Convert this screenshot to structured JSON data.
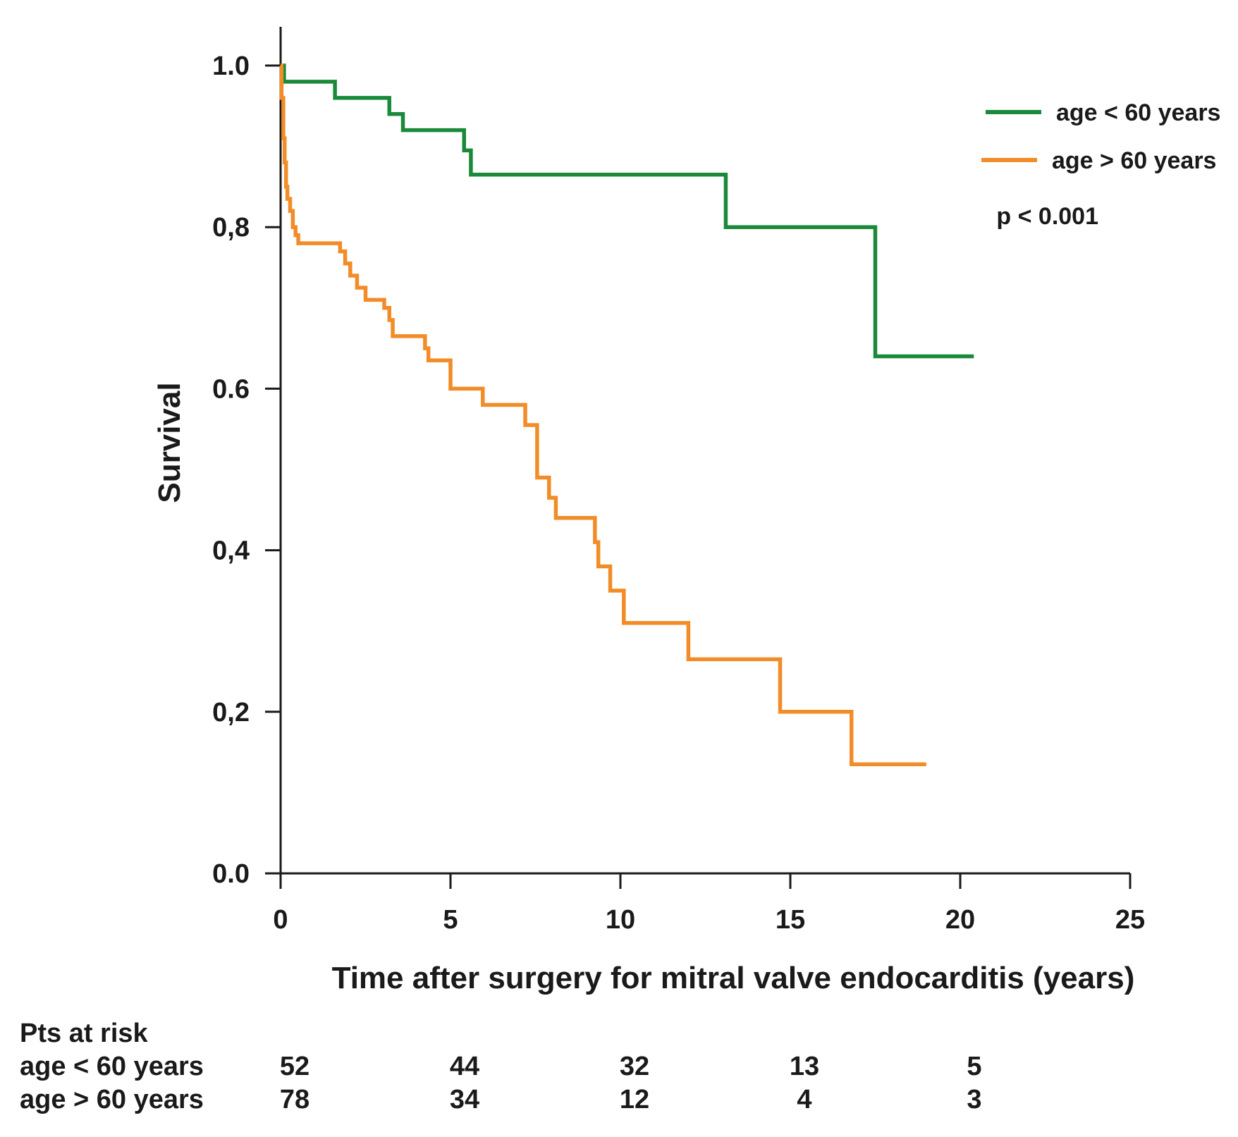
{
  "chart_data": {
    "type": "line",
    "step": true,
    "title": "",
    "xlabel": "Time after surgery for mitral valve endocarditis (years)",
    "ylabel": "Survival",
    "xlim": [
      0,
      25
    ],
    "ylim": [
      0,
      1.0
    ],
    "x_ticks": [
      "0",
      "5",
      "10",
      "15",
      "20",
      "25"
    ],
    "y_ticks": [
      "0.0",
      "0,2",
      "0,4",
      "0.6",
      "0,8",
      "1.0"
    ],
    "grid": false,
    "legend_position": "top-right",
    "series": [
      {
        "name": "age < 60 years",
        "color": "#1a8a3a",
        "x": [
          0,
          0.1,
          1.6,
          3.2,
          3.6,
          5.4,
          5.6,
          13.1,
          17.5,
          20.4
        ],
        "y": [
          1.0,
          0.98,
          0.96,
          0.94,
          0.92,
          0.895,
          0.865,
          0.8,
          0.64,
          0.64
        ]
      },
      {
        "name": "age > 60 years",
        "color": "#f28c28",
        "x": [
          0,
          0.03,
          0.08,
          0.12,
          0.16,
          0.2,
          0.28,
          0.36,
          0.44,
          0.52,
          1.75,
          1.9,
          2.05,
          2.25,
          2.5,
          3.05,
          3.2,
          3.3,
          3.45,
          4.25,
          4.35,
          4.45,
          5.0,
          5.95,
          7.2,
          7.55,
          7.9,
          8.1,
          9.25,
          9.35,
          9.7,
          10.1,
          12.0,
          14.7,
          16.8,
          19.0
        ],
        "y": [
          1.0,
          0.96,
          0.91,
          0.88,
          0.85,
          0.835,
          0.82,
          0.8,
          0.79,
          0.78,
          0.77,
          0.755,
          0.74,
          0.725,
          0.71,
          0.7,
          0.685,
          0.665,
          0.665,
          0.65,
          0.635,
          0.635,
          0.6,
          0.58,
          0.555,
          0.49,
          0.465,
          0.44,
          0.41,
          0.38,
          0.35,
          0.31,
          0.265,
          0.2,
          0.135,
          0.135
        ]
      }
    ],
    "annotations": [
      "p < 0.001"
    ],
    "risk_table": {
      "title": "Pts at risk",
      "rows": [
        {
          "label": "age < 60 years",
          "values": [
            "52",
            "44",
            "32",
            "13",
            "5"
          ]
        },
        {
          "label": "age > 60 years",
          "values": [
            "78",
            "34",
            "12",
            "4",
            "3"
          ]
        }
      ]
    }
  }
}
